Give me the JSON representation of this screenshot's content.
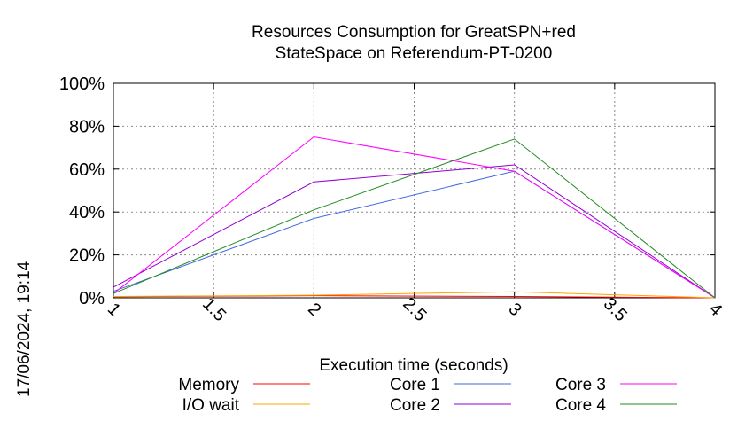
{
  "chart_data": {
    "type": "line",
    "title_line1": "Resources Consumption for GreatSPN+red",
    "title_line2": "StateSpace on Referendum-PT-0200",
    "xlabel": "Execution time (seconds)",
    "ylabel": "",
    "xlim": [
      1,
      4
    ],
    "ylim": [
      0,
      100
    ],
    "x_ticks": [
      "1",
      "1.5",
      "2",
      "2.5",
      "3",
      "3.5",
      "4"
    ],
    "y_ticks": [
      "0%",
      "20%",
      "40%",
      "60%",
      "80%",
      "100%"
    ],
    "grid": true,
    "legend_position": "bottom",
    "series": [
      {
        "name": "Memory",
        "color": "#ff0000",
        "x": [
          1,
          2,
          3,
          4
        ],
        "y": [
          0.5,
          1.0,
          0.6,
          0
        ]
      },
      {
        "name": "I/O wait",
        "color": "#ffa500",
        "x": [
          1,
          2,
          3,
          4
        ],
        "y": [
          0.6,
          1.2,
          2.8,
          0
        ]
      },
      {
        "name": "Core 1",
        "color": "#4169e1",
        "x": [
          1,
          2,
          3,
          4
        ],
        "y": [
          3,
          37,
          59,
          0
        ]
      },
      {
        "name": "Core 2",
        "color": "#9400d3",
        "x": [
          1,
          2,
          3,
          4
        ],
        "y": [
          5,
          54,
          62,
          0
        ]
      },
      {
        "name": "Core 3",
        "color": "#ff00ff",
        "x": [
          1,
          2,
          3,
          4
        ],
        "y": [
          2,
          75,
          59,
          0
        ]
      },
      {
        "name": "Core 4",
        "color": "#228b22",
        "x": [
          1,
          2,
          3,
          4
        ],
        "y": [
          2,
          41,
          74,
          0
        ]
      }
    ]
  },
  "side_stamp": "17/06/2024, 19:14"
}
